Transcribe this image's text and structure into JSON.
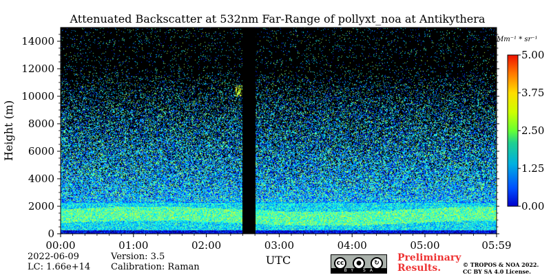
{
  "chart_data": {
    "type": "heatmap",
    "title": "Attenuated Backscatter at 532nm Far-Range of pollyxt_noa at Antikythera",
    "xlabel": "UTC",
    "ylabel": "Height (m)",
    "x_tick_labels": [
      "00:00",
      "01:00",
      "02:00",
      "03:00",
      "04:00",
      "05:00",
      "05:59"
    ],
    "x_range_hours": [
      0,
      5.983
    ],
    "y_ticks": [
      0,
      2000,
      4000,
      6000,
      8000,
      10000,
      12000,
      14000
    ],
    "y_tick_labels": [
      "0",
      "2000",
      "4000",
      "6000",
      "8000",
      "10000",
      "12000",
      "14000"
    ],
    "ylim": [
      0,
      15000
    ],
    "colorbar": {
      "unit_label": "Mm⁻¹ * sr⁻¹",
      "ticks": [
        0.0,
        1.25,
        2.5,
        3.75,
        5.0
      ],
      "tick_labels": [
        "0.00",
        "1.25",
        "2.50",
        "3.75",
        "5.00"
      ],
      "range": [
        0,
        5
      ],
      "colormap": "jet"
    },
    "no_data_interval_utc": [
      "02:30",
      "02:40"
    ],
    "features": [
      {
        "kind": "surface layer",
        "height_range_m": [
          0,
          300
        ],
        "level": 0.5
      },
      {
        "kind": "aerosol layer",
        "height_range_m": [
          400,
          2300
        ],
        "level": 2.2
      },
      {
        "kind": "cloud",
        "time_utc": "02:27",
        "height_range_m": [
          10000,
          10800
        ],
        "level": 3.3
      }
    ]
  },
  "info": {
    "date": "2022-06-09",
    "lc": "LC: 1.66e+14",
    "version": "Version: 3.5",
    "calibration": "Calibration: Raman"
  },
  "license": {
    "cc_text": "cc",
    "badge_labels": "BY SA",
    "preliminary_line1": "Preliminary",
    "preliminary_line2": "Results.",
    "copyright_line1": "© TROPOS & NOA 2022.",
    "copyright_line2": "CC BY SA 4.0 License."
  },
  "colors": {
    "no_data": "#000000",
    "prelim_text": "#ee3333"
  }
}
